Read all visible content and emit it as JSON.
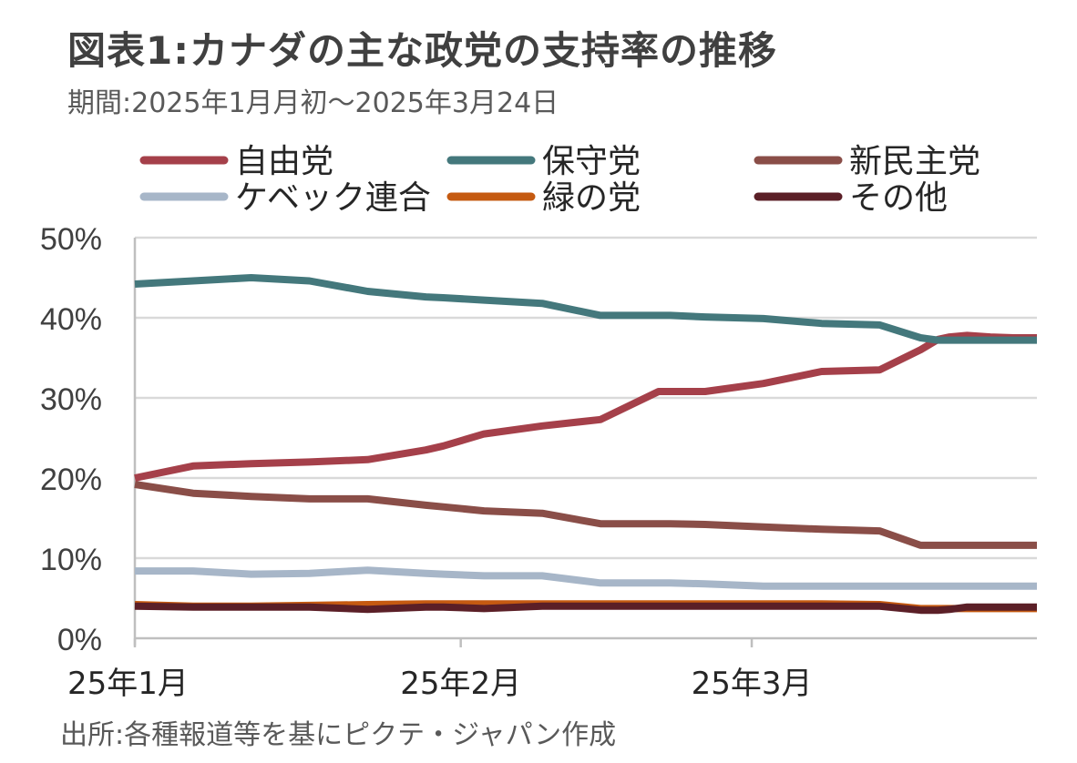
{
  "title": "図表1:カナダの主な政党の支持率の推移",
  "subtitle": "期間:2025年1月月初～2025年3月24日",
  "source": "出所:各種報道等を基にピクテ・ジャパン作成",
  "chart_data": {
    "type": "line",
    "title": "図表1:カナダの主な政党の支持率の推移",
    "subtitle": "期間:2025年1月月初～2025年3月24日",
    "xlabel": "",
    "ylabel": "",
    "x": [
      0,
      10,
      20,
      30,
      40,
      50,
      53,
      60,
      70,
      80,
      90,
      92,
      98,
      108,
      118,
      128,
      135,
      138,
      140,
      143,
      147,
      151,
      155
    ],
    "x_unit": "days since 2025-01-01",
    "x_ticks": [
      {
        "value": 0,
        "label": "25年1月"
      },
      {
        "value": 56,
        "label": "25年2月"
      },
      {
        "value": 106,
        "label": "25年3月"
      }
    ],
    "xlim": [
      0,
      155
    ],
    "ylim": [
      0,
      50
    ],
    "y_ticks": [
      {
        "value": 0,
        "label": "0%"
      },
      {
        "value": 10,
        "label": "10%"
      },
      {
        "value": 20,
        "label": "20%"
      },
      {
        "value": 30,
        "label": "30%"
      },
      {
        "value": 40,
        "label": "40%"
      },
      {
        "value": 50,
        "label": "50%"
      }
    ],
    "grid": true,
    "legend_position": "top",
    "series": [
      {
        "name": "自由党",
        "color": "#A5404A",
        "values": [
          20.0,
          21.5,
          21.8,
          22.0,
          22.3,
          23.5,
          24.0,
          25.5,
          26.5,
          27.3,
          30.8,
          30.8,
          30.8,
          31.8,
          33.3,
          33.5,
          36.0,
          37.3,
          37.6,
          37.8,
          37.6,
          37.5,
          37.5
        ]
      },
      {
        "name": "保守党",
        "color": "#44787C",
        "values": [
          44.2,
          44.6,
          45.0,
          44.6,
          43.3,
          42.6,
          42.5,
          42.2,
          41.8,
          40.3,
          40.3,
          40.3,
          40.1,
          39.9,
          39.3,
          39.1,
          37.5,
          37.2,
          37.2,
          37.2,
          37.2,
          37.2,
          37.2
        ]
      },
      {
        "name": "新民主党",
        "color": "#8A4E48",
        "values": [
          19.2,
          18.1,
          17.7,
          17.4,
          17.4,
          16.6,
          16.4,
          15.9,
          15.6,
          14.3,
          14.3,
          14.3,
          14.2,
          13.9,
          13.6,
          13.4,
          11.6,
          11.6,
          11.6,
          11.6,
          11.6,
          11.6,
          11.6
        ]
      },
      {
        "name": "ケベック連合",
        "color": "#A7B6C8",
        "values": [
          8.4,
          8.4,
          8.0,
          8.1,
          8.5,
          8.1,
          8.0,
          7.8,
          7.8,
          6.9,
          6.9,
          6.9,
          6.8,
          6.5,
          6.5,
          6.5,
          6.5,
          6.5,
          6.5,
          6.5,
          6.5,
          6.5,
          6.5
        ]
      },
      {
        "name": "緑の党",
        "color": "#C55A11",
        "values": [
          4.2,
          4.0,
          4.0,
          4.1,
          4.2,
          4.3,
          4.3,
          4.3,
          4.3,
          4.3,
          4.3,
          4.3,
          4.3,
          4.3,
          4.3,
          4.2,
          3.7,
          3.7,
          3.7,
          3.7,
          3.7,
          3.7,
          3.7
        ]
      },
      {
        "name": "その他",
        "color": "#5B1F27",
        "values": [
          4.0,
          3.9,
          3.9,
          3.9,
          3.6,
          3.9,
          3.9,
          3.7,
          4.0,
          4.0,
          4.0,
          4.0,
          4.0,
          4.0,
          4.0,
          4.0,
          3.5,
          3.5,
          3.6,
          3.9,
          3.9,
          3.9,
          3.9
        ]
      }
    ]
  }
}
